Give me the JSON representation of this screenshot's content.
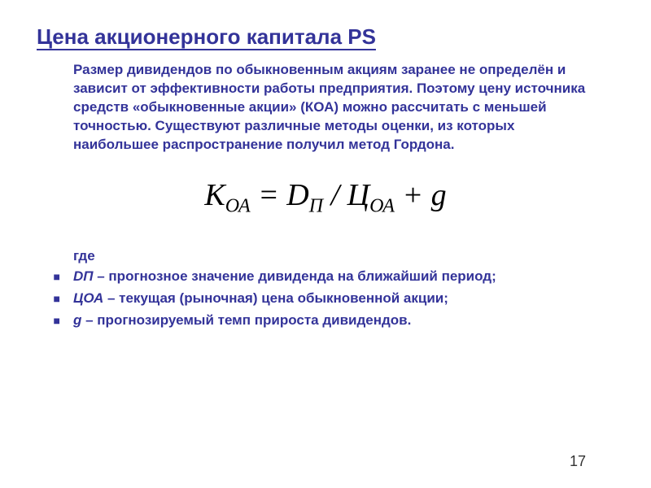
{
  "title": "Цена акционерного капитала PS",
  "paragraph": "Размер дивидендов по обыкновенным акциям заранее не определён и зависит от эффективности работы предприятия. Поэтому цену источника средств «обыкновенные акции» (КОА) можно рассчитать с меньшей точностью. Существуют различные методы оценки, из которых наибольшее распространение получил метод Гордона.",
  "formula": {
    "lhs_main": "K",
    "lhs_sub": "ОА",
    "eq": " = ",
    "d_main": "D",
    "d_sub": "П",
    "div": " / ",
    "c_main": "Ц",
    "c_sub": "ОА",
    "plus": " + ",
    "g": "g"
  },
  "where_label": "где",
  "definitions": [
    {
      "term": "DП",
      "text": " – прогнозное значение дивиденда на ближайший период;"
    },
    {
      "term": "ЦОА",
      "text": "  – текущая (рыночная) цена обыкновенной акции;"
    },
    {
      "term": "g",
      "text": " – прогнозируемый темп прироста дивидендов."
    }
  ],
  "page_number": "17",
  "colors": {
    "title": "#333399",
    "body": "#333399",
    "formula": "#000000",
    "background": "#ffffff",
    "page_num": "#333333"
  },
  "fonts": {
    "body_size_pt": 17,
    "title_size_pt": 26,
    "formula_size_pt": 38
  }
}
